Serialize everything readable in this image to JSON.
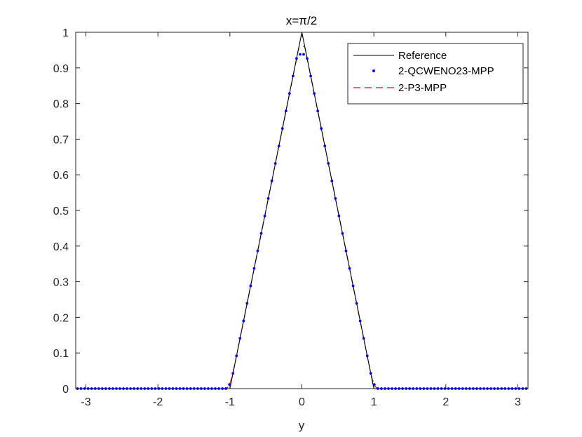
{
  "chart_data": {
    "type": "line",
    "title": "x=π/2",
    "xlabel": "y",
    "ylabel": "",
    "xlim": [
      -3.14159,
      3.14159
    ],
    "ylim": [
      0,
      1
    ],
    "x_ticks": [
      -3,
      -2,
      -1,
      0,
      1,
      2,
      3
    ],
    "x_tick_labels": [
      "-3",
      "-2",
      "-1",
      "0",
      "1",
      "2",
      "3"
    ],
    "y_ticks": [
      0,
      0.1,
      0.2,
      0.3,
      0.4,
      0.5,
      0.6,
      0.7,
      0.8,
      0.9,
      1
    ],
    "y_tick_labels": [
      "0",
      "0.1",
      "0.2",
      "0.3",
      "0.4",
      "0.5",
      "0.6",
      "0.7",
      "0.8",
      "0.9",
      "1"
    ],
    "grid": false,
    "legend_position": "top-right",
    "series": [
      {
        "name": "Reference",
        "style": "solid-line",
        "color": "#000000",
        "x": [
          -3.14159,
          -1,
          0,
          1,
          3.14159
        ],
        "y": [
          0,
          0,
          1,
          0,
          0
        ]
      },
      {
        "name": "2-QCWENO23-MPP",
        "style": "dots",
        "color": "#0000ff",
        "peak": 0.938
      },
      {
        "name": "2-P3-MPP",
        "style": "dashed-line",
        "color": "#ff0000",
        "peak": 0.96
      }
    ]
  }
}
